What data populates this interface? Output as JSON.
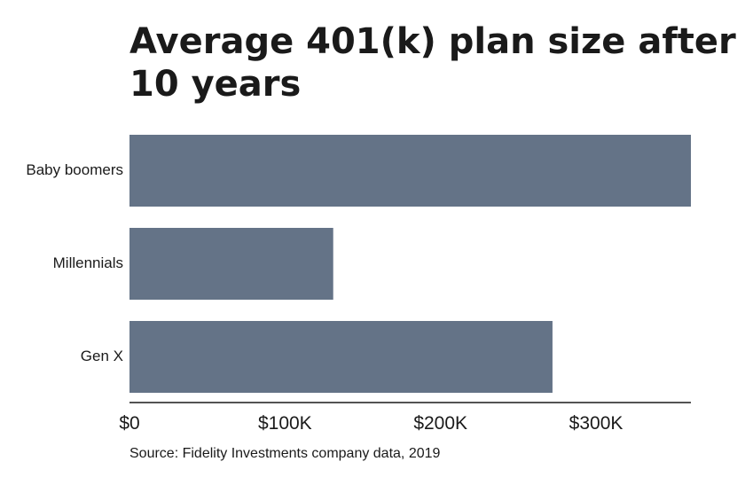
{
  "chart_data": {
    "type": "bar",
    "orientation": "horizontal",
    "title_lines": [
      "Average 401(k) plan size after",
      "10 years"
    ],
    "categories": [
      "Baby boomers",
      "Millennials",
      "Gen X"
    ],
    "values": [
      361000,
      131000,
      272000
    ],
    "x_ticks": [
      0,
      100000,
      200000,
      300000
    ],
    "x_tick_labels": [
      "$0",
      "$100K",
      "$200K",
      "$300K"
    ],
    "xlim": [
      0,
      361000
    ],
    "bar_color": "#647387",
    "axis_color": "#1a1a1a",
    "source": "Source: Fidelity Investments company data, 2019",
    "xlabel": "",
    "ylabel": "",
    "grid": false
  }
}
